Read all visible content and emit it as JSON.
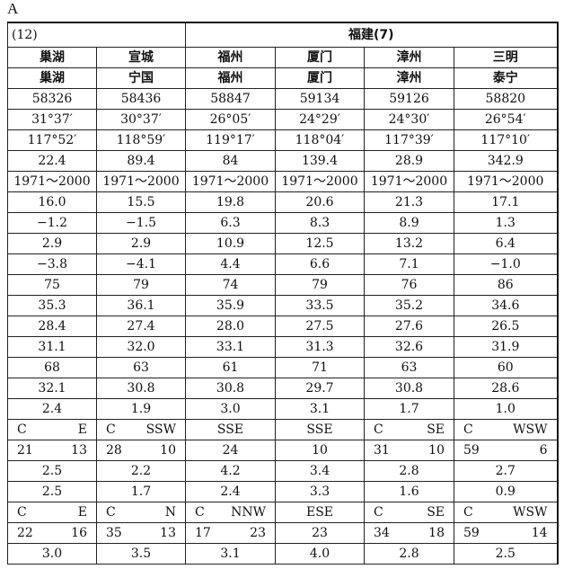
{
  "figure_label": "A",
  "group_headers": {
    "left": "(12)",
    "right": "福建(7)"
  },
  "rows": [
    [
      "巢湖",
      "宣城",
      "福州",
      "厦门",
      "漳州",
      "三明"
    ],
    [
      "巢湖",
      "宁国",
      "福州",
      "厦门",
      "漳州",
      "泰宁"
    ],
    [
      "58326",
      "58436",
      "58847",
      "59134",
      "59126",
      "58820"
    ],
    [
      "31°37′",
      "30°37′",
      "26°05′",
      "24°29′",
      "24°30′",
      "26°54′"
    ],
    [
      "117°52′",
      "118°59′",
      "119°17′",
      "118°04′",
      "117°39′",
      "117°10′"
    ],
    [
      "22.4",
      "89.4",
      "84",
      "139.4",
      "28.9",
      "342.9"
    ],
    [
      "1971～2000",
      "1971～2000",
      "1971～2000",
      "1971～2000",
      "1971～2000",
      "1971～2000"
    ],
    [
      "16.0",
      "15.5",
      "19.8",
      "20.6",
      "21.3",
      "17.1"
    ],
    [
      "−1.2",
      "−1.5",
      "6.3",
      "8.3",
      "8.9",
      "1.3"
    ],
    [
      "2.9",
      "2.9",
      "10.9",
      "12.5",
      "13.2",
      "6.4"
    ],
    [
      "−3.8",
      "−4.1",
      "4.4",
      "6.6",
      "7.1",
      "−1.0"
    ],
    [
      "75",
      "79",
      "74",
      "79",
      "76",
      "86"
    ],
    [
      "35.3",
      "36.1",
      "35.9",
      "33.5",
      "35.2",
      "34.6"
    ],
    [
      "28.4",
      "27.4",
      "28.0",
      "27.5",
      "27.6",
      "26.5"
    ],
    [
      "31.1",
      "32.0",
      "33.1",
      "31.3",
      "32.6",
      "31.9"
    ],
    [
      "68",
      "63",
      "61",
      "71",
      "63",
      "60"
    ],
    [
      "32.1",
      "30.8",
      "30.8",
      "29.7",
      "30.8",
      "28.6"
    ],
    [
      "2.4",
      "1.9",
      "3.0",
      "3.1",
      "1.7",
      "1.0"
    ],
    [
      [
        "C",
        "E"
      ],
      [
        "C",
        "SSW"
      ],
      [
        "SSE"
      ],
      [
        "SSE"
      ],
      [
        "C",
        "SE"
      ],
      [
        "C",
        "WSW"
      ]
    ],
    [
      [
        "21",
        "13"
      ],
      [
        "28",
        "10"
      ],
      [
        "24"
      ],
      [
        "10"
      ],
      [
        "31",
        "10"
      ],
      [
        "59",
        "6"
      ]
    ],
    [
      "2.5",
      "2.2",
      "4.2",
      "3.4",
      "2.8",
      "2.7"
    ],
    [
      "2.5",
      "1.7",
      "2.4",
      "3.3",
      "1.6",
      "0.9"
    ],
    [
      [
        "C",
        "E"
      ],
      [
        "C",
        "N"
      ],
      [
        "C",
        "NNW"
      ],
      [
        "ESE"
      ],
      [
        "C",
        "SE"
      ],
      [
        "C",
        "WSW"
      ]
    ],
    [
      [
        "22",
        "16"
      ],
      [
        "35",
        "13"
      ],
      [
        "17",
        "23"
      ],
      [
        "23"
      ],
      [
        "34",
        "18"
      ],
      [
        "59",
        "14"
      ]
    ],
    [
      "3.0",
      "3.5",
      "3.1",
      "4.0",
      "2.8",
      "2.5"
    ]
  ]
}
